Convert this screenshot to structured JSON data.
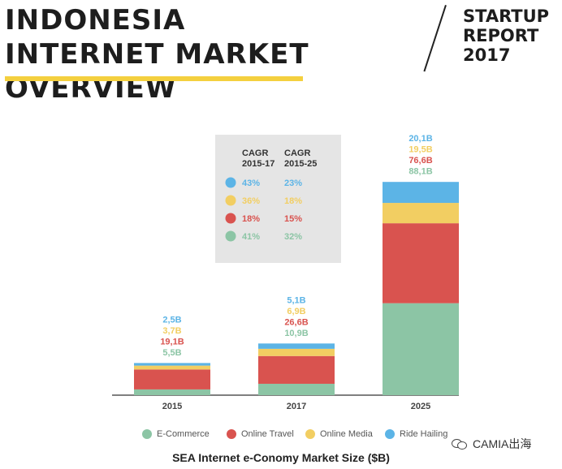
{
  "header": {
    "title": "INDONESIA INTERNET MARKET OVERVIEW",
    "report": "STARTUP REPORT 2017"
  },
  "colors": {
    "ecommerce": "#8cc5a5",
    "travel": "#d9534f",
    "media": "#f2ce62",
    "ride": "#5cb4e6",
    "highlight": "#f4d03f",
    "box": "#e5e5e5"
  },
  "chart_data": {
    "type": "bar",
    "stacked": true,
    "categories": [
      "2015",
      "2017",
      "2025"
    ],
    "series": [
      {
        "name": "E-Commerce",
        "values": [
          5.5,
          10.9,
          88.1
        ],
        "labels": [
          "5,5B",
          "10,9B",
          "88,1B"
        ],
        "color": "#8cc5a5"
      },
      {
        "name": "Online Travel",
        "values": [
          19.1,
          26.6,
          76.6
        ],
        "labels": [
          "19,1B",
          "26,6B",
          "76,6B"
        ],
        "color": "#d9534f"
      },
      {
        "name": "Online Media",
        "values": [
          3.7,
          6.9,
          19.5
        ],
        "labels": [
          "3,7B",
          "6,9B",
          "19,5B"
        ],
        "color": "#f2ce62"
      },
      {
        "name": "Ride Hailing",
        "values": [
          2.5,
          5.1,
          20.1
        ],
        "labels": [
          "2,5B",
          "5,1B",
          "20,1B"
        ],
        "color": "#5cb4e6"
      }
    ],
    "ylim": [
      0,
      220
    ],
    "xlabel": "SEA Internet e-Conomy Market Size ($B)",
    "cagr_table": {
      "headers": [
        "CAGR\n2015-17",
        "CAGR\n2015-25"
      ],
      "rows": [
        {
          "series": "Ride Hailing",
          "values": [
            "43%",
            "23%"
          ]
        },
        {
          "series": "Online Media",
          "values": [
            "36%",
            "18%"
          ]
        },
        {
          "series": "Online Travel",
          "values": [
            "18%",
            "15%"
          ]
        },
        {
          "series": "E-Commerce",
          "values": [
            "41%",
            "32%"
          ]
        }
      ]
    },
    "legend_position": "bottom"
  },
  "watermark": "CAMIA出海"
}
